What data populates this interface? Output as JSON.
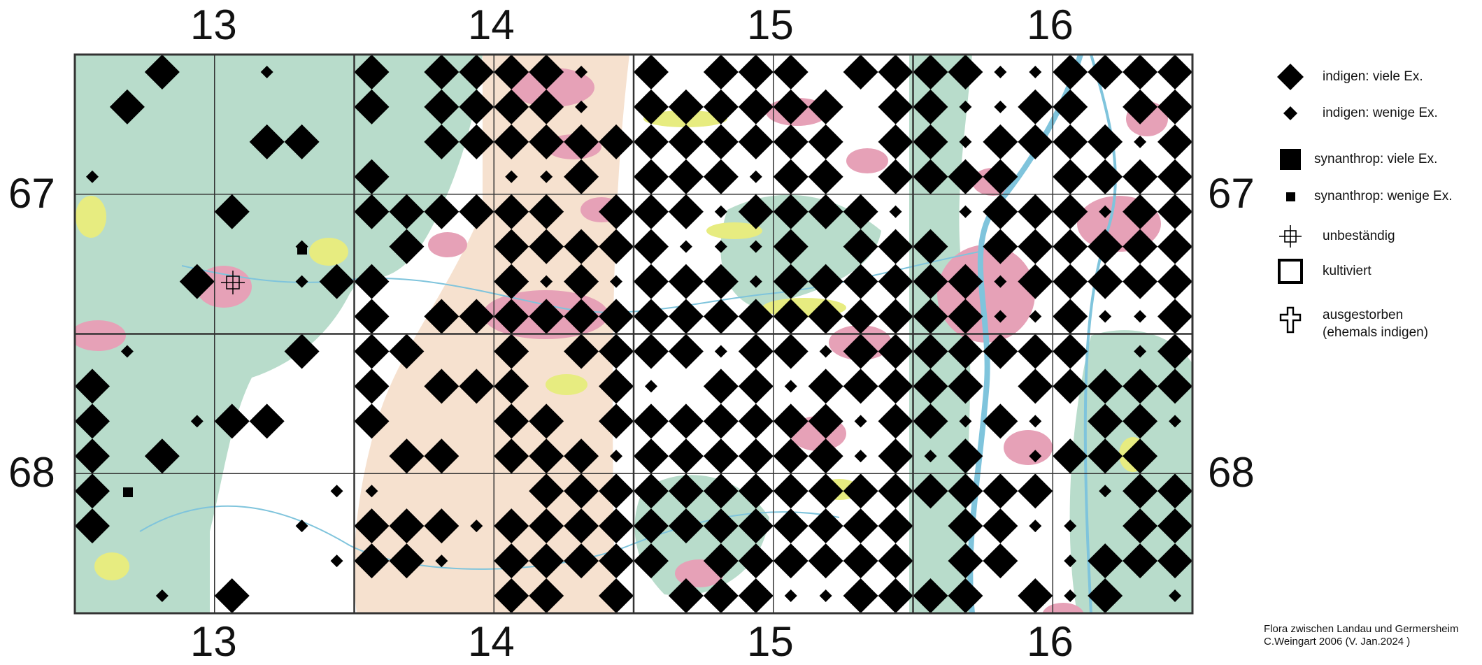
{
  "map": {
    "columns": [
      "13",
      "14",
      "15",
      "16"
    ],
    "rows": [
      "67",
      "68"
    ],
    "colors": {
      "forest": "#b8dccb",
      "open": "#ffffff",
      "settlement": "#e6a1b7",
      "vineyard": "#f6e1cf",
      "meadow": "#e7ec80",
      "water": "#7fc4dc",
      "grid": "#333333",
      "symbol": "#000000"
    },
    "grid_cells": {
      "per_column": 2,
      "per_row": 2,
      "dots_per_cell_side": 4
    }
  },
  "legend": {
    "items": [
      {
        "icon": "large-diamond-icon",
        "label": "indigen: viele Ex."
      },
      {
        "icon": "small-diamond-icon",
        "label": "indigen: wenige Ex."
      },
      {
        "icon": "large-square-icon",
        "label": "synanthrop: viele Ex."
      },
      {
        "icon": "small-square-icon",
        "label": "synanthrop: wenige Ex."
      },
      {
        "icon": "crosshair-icon",
        "label": "unbeständig"
      },
      {
        "icon": "open-square-icon",
        "label": "kultiviert"
      },
      {
        "icon": "cross-icon",
        "label": "ausgestorben",
        "label2": "(ehemals indigen)"
      }
    ]
  },
  "credit": {
    "line1": "Flora zwischen Landau und Germersheim",
    "line2": "C.Weingart 2006 (V. Jan.2024 )"
  }
}
